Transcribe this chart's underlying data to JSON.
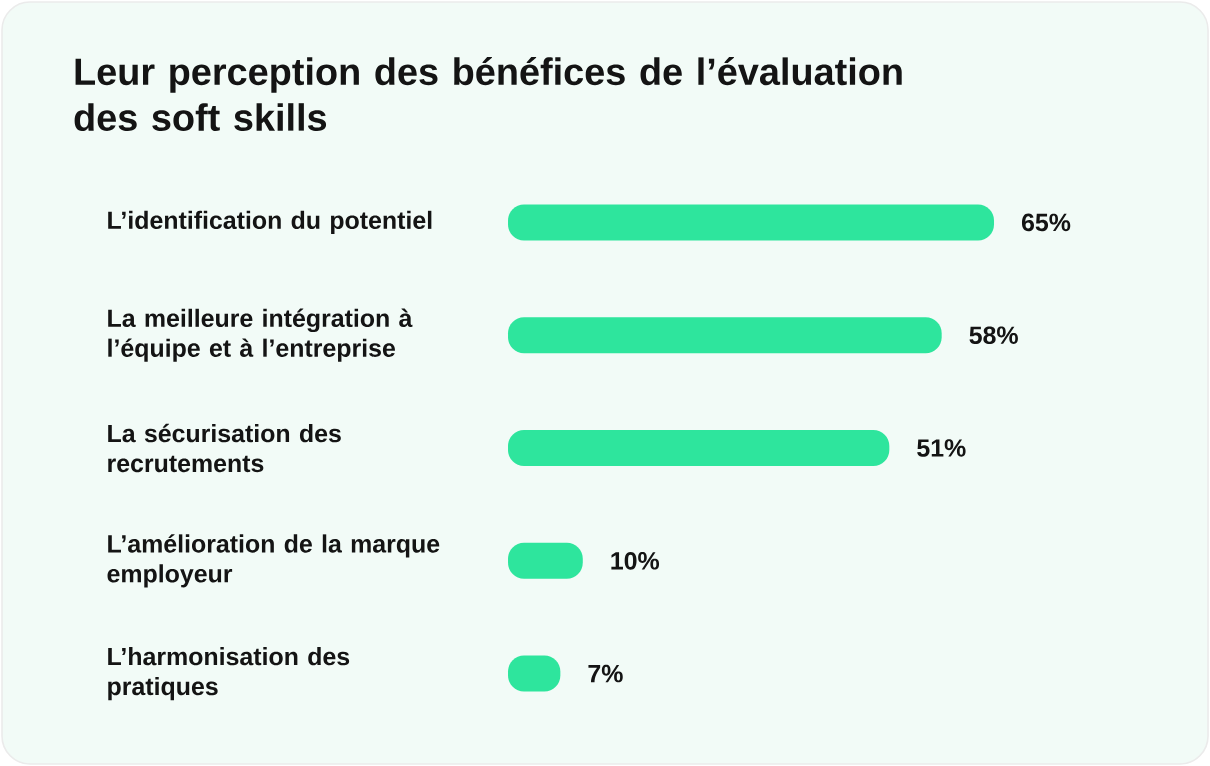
{
  "chart_data": {
    "type": "bar",
    "orientation": "horizontal",
    "title": "Leur perception des bénéfices de l’évaluation des soft skills",
    "categories": [
      "L’identification du potentiel",
      "La meilleure intégration à l’équipe et à l’entreprise",
      "La sécurisation des recrutements",
      "L’amélioration de la marque employeur",
      "L’harmonisation des pratiques"
    ],
    "values": [
      65,
      58,
      51,
      10,
      7
    ],
    "value_labels": [
      "65%",
      "58%",
      "51%",
      "10%",
      "7%"
    ],
    "color": "#2ee59d",
    "tick_labels": "y"
  }
}
